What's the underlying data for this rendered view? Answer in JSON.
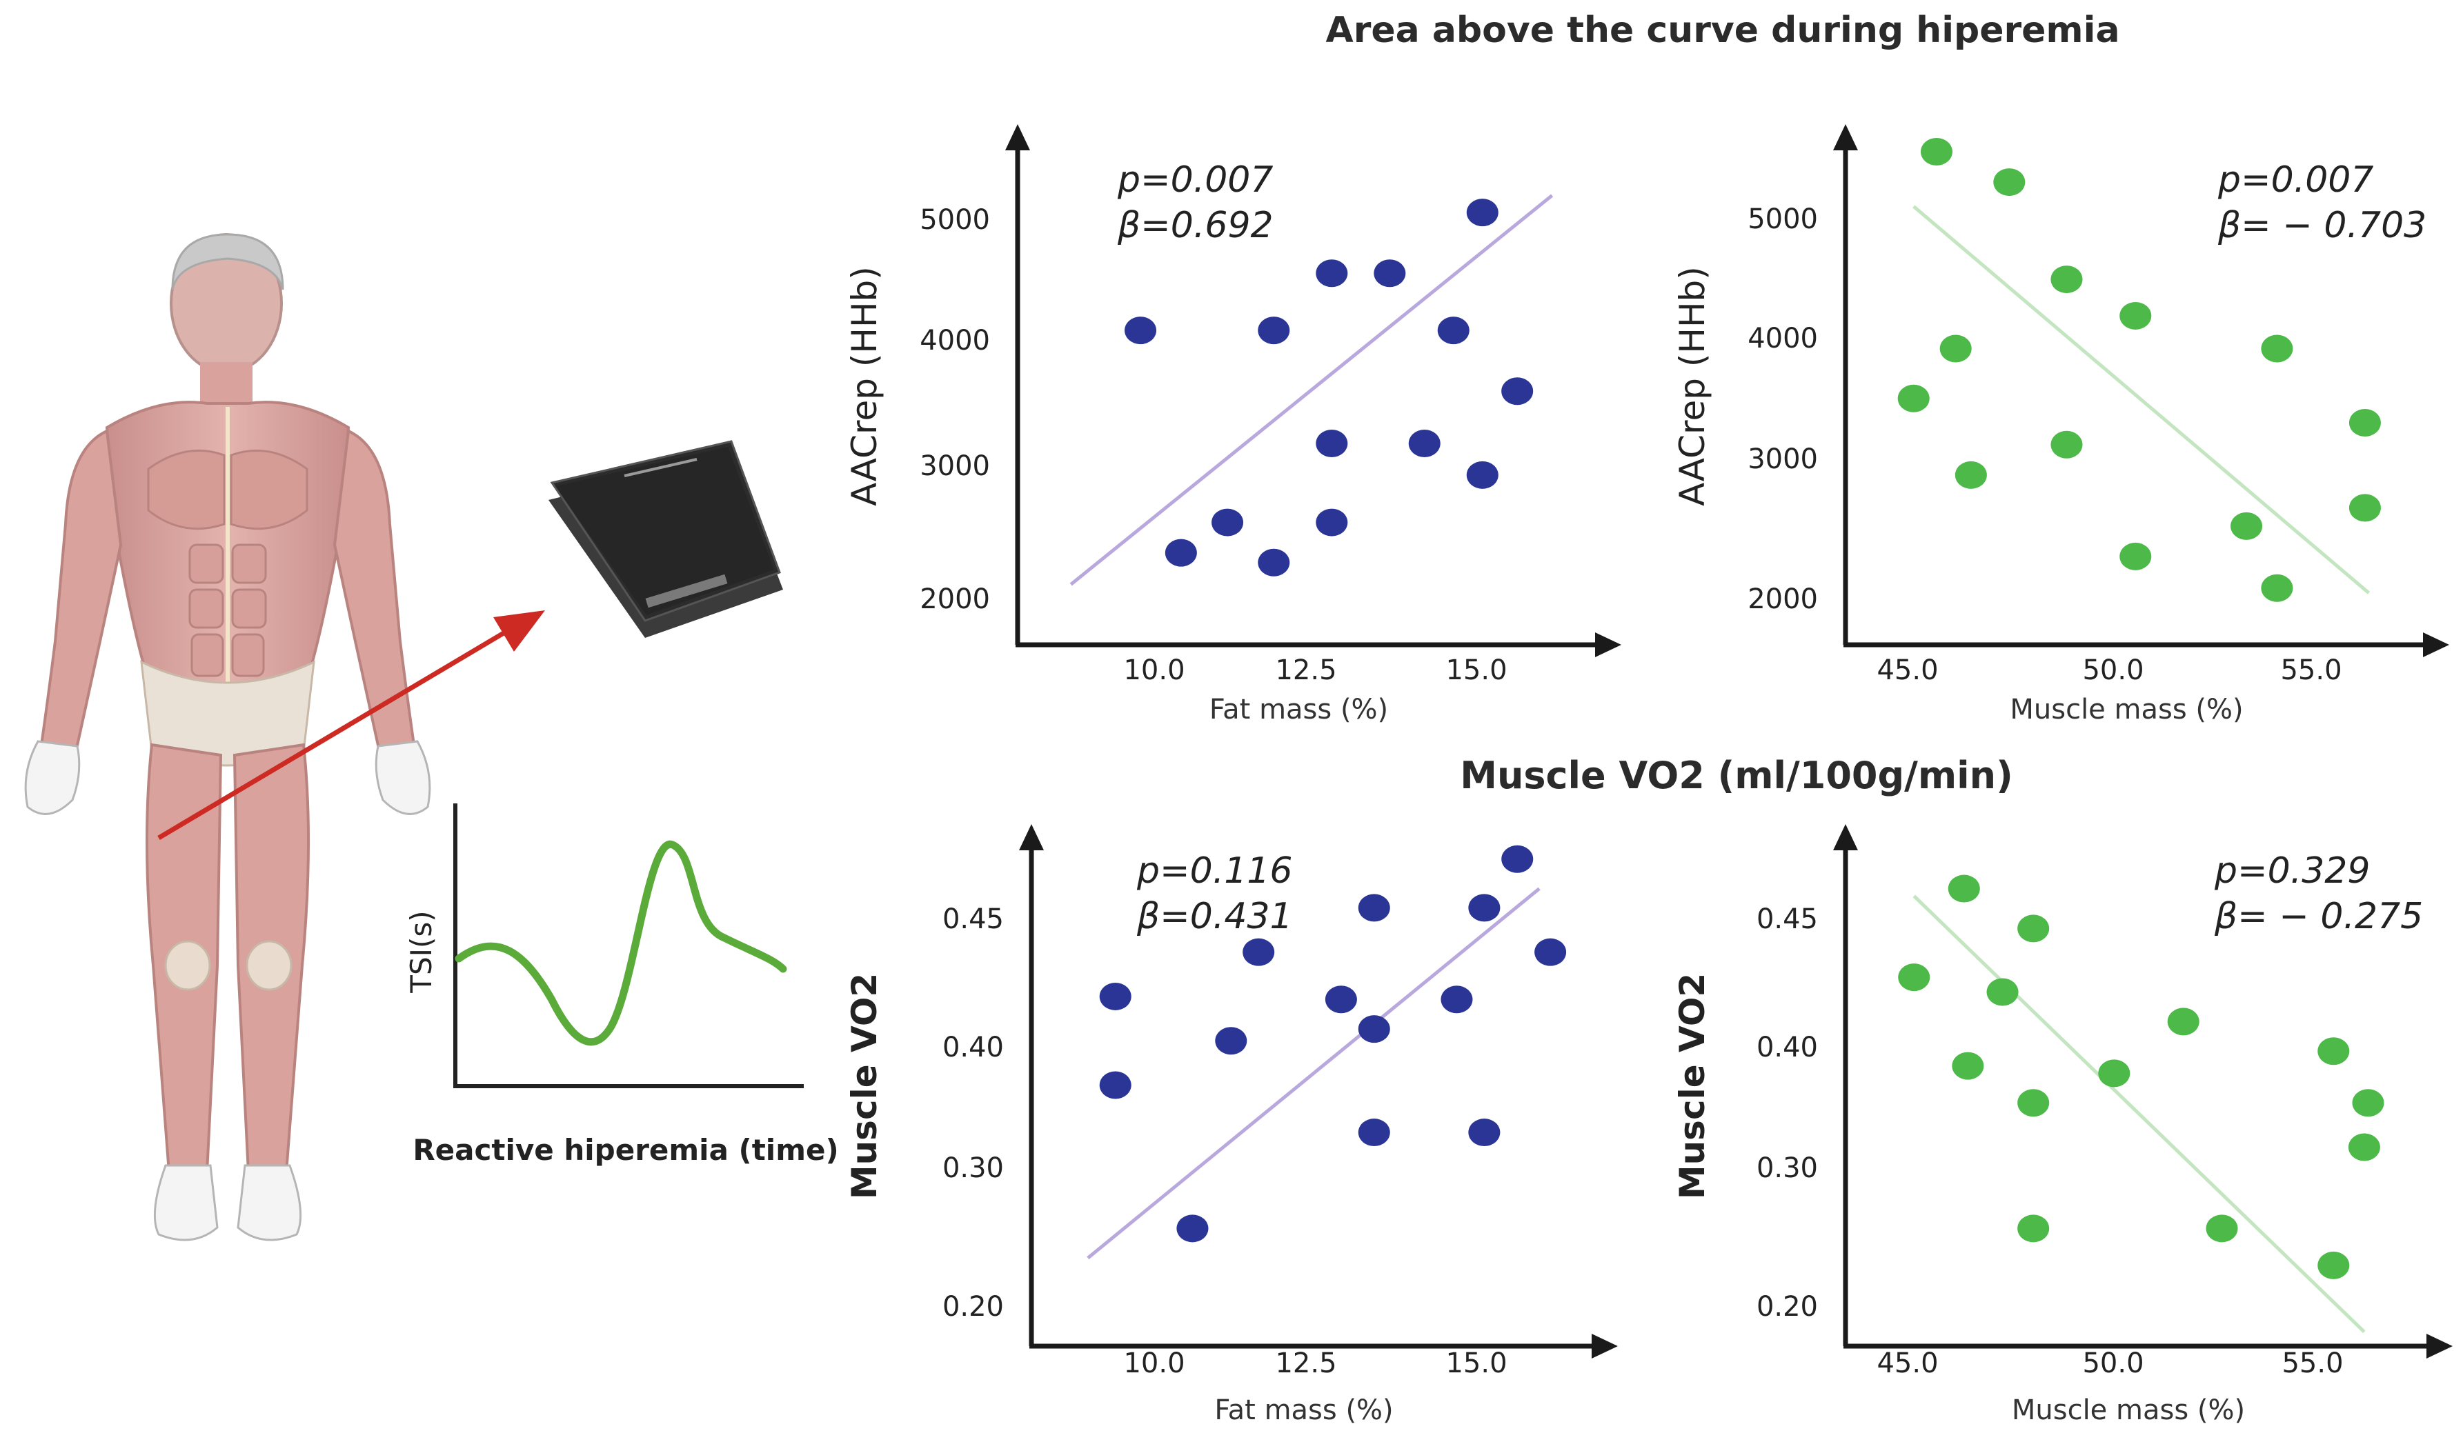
{
  "titles": {
    "top": "Area above the curve during hiperemia",
    "bottom": "Muscle VO2 (ml/100g/min)"
  },
  "illustration": {
    "device_icon": "nirs-device-icon",
    "body_icon": "human-muscle-body-icon",
    "arrow_color": "#cc2a22",
    "tsi": {
      "ylabel": "TSI(s)",
      "xlabel": "Reactive hiperemia (time)",
      "curve_color": "#5bab3b"
    }
  },
  "chart_data": [
    {
      "id": "aac-fat",
      "type": "scatter",
      "xlabel": "Fat mass (%)",
      "ylabel": "AACrep (HHb)",
      "xticks": [
        "10.0",
        "12.5",
        "15.0"
      ],
      "yticks": [
        "2000",
        "3000",
        "4000",
        "5000"
      ],
      "xlim": [
        7.7,
        17.4
      ],
      "ylim": [
        1650,
        5650
      ],
      "annotation": [
        "p=0.007",
        "β=0.692"
      ],
      "color": "#2b3596",
      "trend_color": "#b9a8dd",
      "trend": [
        [
          8.5,
          2090
        ],
        [
          16.8,
          5290
        ]
      ],
      "points": [
        [
          9.7,
          4180
        ],
        [
          10.4,
          2350
        ],
        [
          11.2,
          2600
        ],
        [
          12.0,
          2270
        ],
        [
          12.0,
          4180
        ],
        [
          13.0,
          2600
        ],
        [
          13.0,
          3250
        ],
        [
          13.0,
          4650
        ],
        [
          14.0,
          4650
        ],
        [
          14.6,
          3250
        ],
        [
          15.1,
          4180
        ],
        [
          15.6,
          2990
        ],
        [
          15.6,
          5150
        ],
        [
          16.2,
          3680
        ]
      ]
    },
    {
      "id": "aac-muscle",
      "type": "scatter",
      "xlabel": "Muscle mass (%)",
      "ylabel": "AACrep (HHb)",
      "xticks": [
        "45.0",
        "50.0",
        "55.0"
      ],
      "yticks": [
        "2000",
        "3000",
        "4000",
        "5000"
      ],
      "xlim": [
        43.4,
        58.1
      ],
      "ylim": [
        1650,
        5650
      ],
      "annotation": [
        "p=0.007",
        "β= − 0.703"
      ],
      "color": "#4cb948",
      "trend_color": "#c3e5c0",
      "trend": [
        [
          45.0,
          5200
        ],
        [
          56.9,
          2020
        ]
      ],
      "points": [
        [
          45.6,
          5650
        ],
        [
          47.5,
          5400
        ],
        [
          46.1,
          4030
        ],
        [
          45.0,
          3620
        ],
        [
          46.5,
          2990
        ],
        [
          49.0,
          4600
        ],
        [
          49.0,
          3240
        ],
        [
          50.8,
          4300
        ],
        [
          50.8,
          2320
        ],
        [
          53.7,
          2570
        ],
        [
          54.5,
          4030
        ],
        [
          54.5,
          2060
        ],
        [
          56.8,
          3420
        ],
        [
          56.8,
          2720
        ]
      ]
    },
    {
      "id": "vo2-fat",
      "type": "scatter",
      "xlabel": "Fat mass (%)",
      "ylabel": "Muscle VO2",
      "xticks": [
        "10.0",
        "12.5",
        "15.0"
      ],
      "yticks": [
        "0.20",
        "0.30",
        "0.40",
        "0.45"
      ],
      "xlim": [
        7.7,
        17.6
      ],
      "ylim": [
        0.17,
        0.5
      ],
      "annotation": [
        "p=0.116",
        "β=0.431"
      ],
      "color": "#2b3596",
      "trend_color": "#b9a8dd",
      "trend": [
        [
          8.6,
          0.225
        ],
        [
          16.8,
          0.475
        ]
      ],
      "points": [
        [
          9.1,
          0.402
        ],
        [
          9.1,
          0.342
        ],
        [
          10.5,
          0.245
        ],
        [
          11.2,
          0.372
        ],
        [
          11.7,
          0.432
        ],
        [
          13.2,
          0.4
        ],
        [
          13.8,
          0.462
        ],
        [
          13.8,
          0.38
        ],
        [
          13.8,
          0.31
        ],
        [
          15.3,
          0.4
        ],
        [
          15.8,
          0.462
        ],
        [
          15.8,
          0.31
        ],
        [
          16.4,
          0.495
        ],
        [
          17.0,
          0.432
        ]
      ]
    },
    {
      "id": "vo2-muscle",
      "type": "scatter",
      "xlabel": "Muscle mass (%)",
      "ylabel": "Muscle VO2",
      "xticks": [
        "45.0",
        "50.0",
        "55.0"
      ],
      "yticks": [
        "0.20",
        "0.30",
        "0.40",
        "0.45"
      ],
      "xlim": [
        43.4,
        58.1
      ],
      "ylim": [
        0.17,
        0.5
      ],
      "annotation": [
        "p=0.329",
        "β= − 0.275"
      ],
      "color": "#4cb948",
      "trend_color": "#c3e5c0",
      "trend": [
        [
          45.0,
          0.47
        ],
        [
          56.7,
          0.175
        ]
      ],
      "points": [
        [
          46.3,
          0.475
        ],
        [
          48.1,
          0.448
        ],
        [
          45.0,
          0.415
        ],
        [
          47.3,
          0.405
        ],
        [
          46.4,
          0.355
        ],
        [
          48.1,
          0.33
        ],
        [
          50.2,
          0.35
        ],
        [
          48.1,
          0.245
        ],
        [
          52.0,
          0.385
        ],
        [
          53.0,
          0.245
        ],
        [
          55.9,
          0.365
        ],
        [
          56.8,
          0.33
        ],
        [
          56.7,
          0.3
        ],
        [
          55.9,
          0.22
        ]
      ]
    }
  ]
}
